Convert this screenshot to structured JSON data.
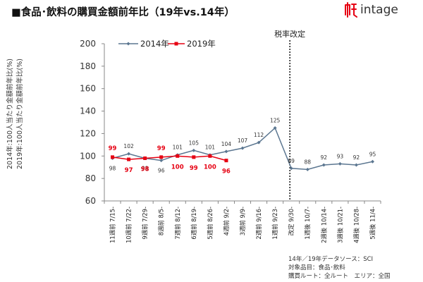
{
  "header": {
    "title": "■食品･飲料の購買金額前年比（19年vs.14年）",
    "logo_text": "intage"
  },
  "notes": [
    "14年／19年データソース：SCI",
    "対象品目：食品･飲料",
    "購買ルート：全ルート　エリア：全国"
  ],
  "colors": {
    "s2014": "#5b7690",
    "s2019": "#e60012"
  },
  "chart_data": {
    "type": "line",
    "title": "食品･飲料の購買金額前年比（19年vs.14年）",
    "ylabel": [
      "2014年:100人当たり金額前年比(%)",
      "2019年:100人当たり金額前年比(%)"
    ],
    "ylim": [
      60,
      200
    ],
    "yticks": [
      60,
      80,
      100,
      120,
      140,
      160,
      180,
      200
    ],
    "categories": [
      "11週前 7/15-",
      "10週前 7/22-",
      "9週前 7/29-",
      "8週前 8/5-",
      "7週前 8/12-",
      "6週前 8/19-",
      "5週前 8/26-",
      "4週前 9/2-",
      "3週前 9/9-",
      "2週前 9/16-",
      "1週前 9/23-",
      "改定 9/30-",
      "1週後 10/7-",
      "2週後 10/14-",
      "3週後 10/21-",
      "4週後 10/28-",
      "5週後 11/4-"
    ],
    "series": [
      {
        "name": "2014年",
        "values": [
          98,
          102,
          98,
          96,
          101,
          105,
          101,
          104,
          107,
          112,
          125,
          89,
          88,
          92,
          93,
          92,
          95
        ]
      },
      {
        "name": "2019年",
        "values": [
          99,
          97,
          98,
          99,
          100,
          99,
          100,
          96,
          null,
          null,
          null,
          null,
          null,
          null,
          null,
          null,
          null
        ]
      }
    ],
    "annotations": [
      {
        "text": "税率改定",
        "at_category": "改定 9/30-"
      }
    ],
    "legend_position": "top-left",
    "grid": false
  }
}
